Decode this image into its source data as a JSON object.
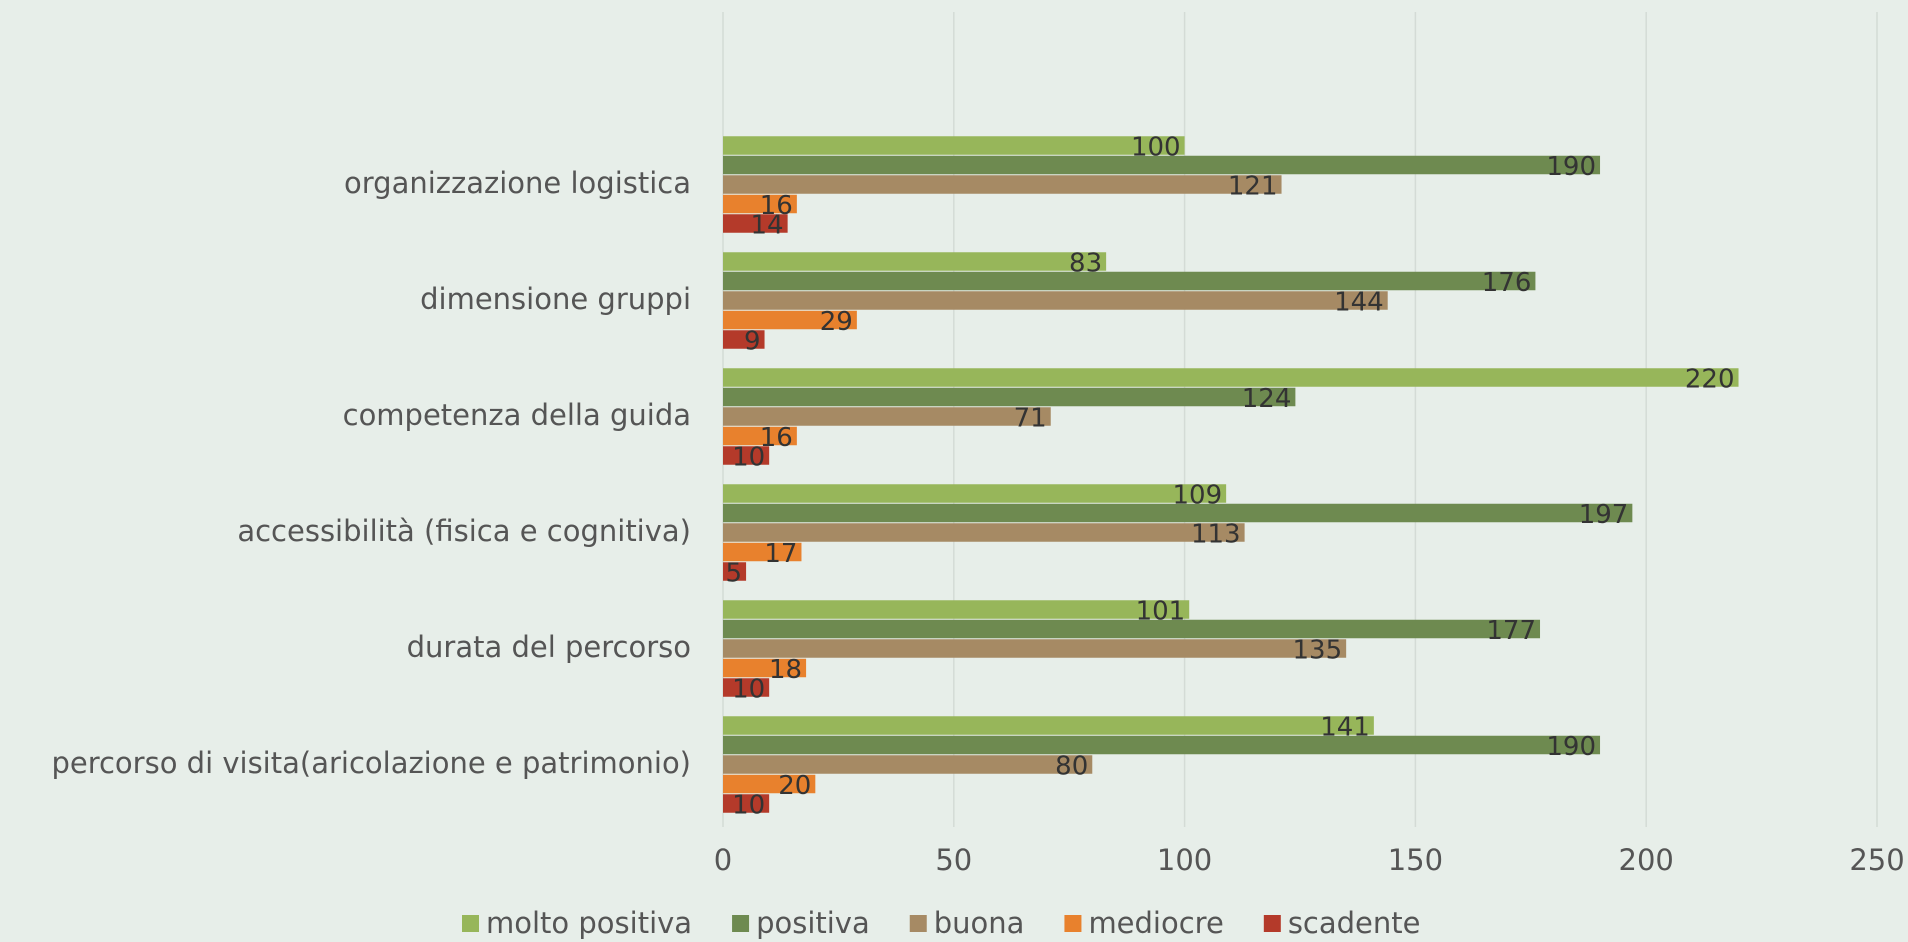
{
  "chart_data": {
    "type": "barh",
    "categories": [
      "organizzazione logistica",
      "dimensione gruppi",
      "competenza della guida",
      "accessibilità (fisica e cognitiva)",
      "durata del percorso",
      "percorso di visita(aricolazione e patrimonio)"
    ],
    "series": [
      {
        "name": "molto positiva",
        "color": "#97b65a",
        "values": [
          100,
          83,
          220,
          109,
          101,
          141
        ]
      },
      {
        "name": "positiva",
        "color": "#6e8a50",
        "values": [
          190,
          176,
          124,
          197,
          177,
          190
        ]
      },
      {
        "name": "buona",
        "color": "#a68a64",
        "values": [
          121,
          144,
          71,
          113,
          135,
          80
        ]
      },
      {
        "name": "mediocre",
        "color": "#e8812d",
        "values": [
          16,
          29,
          16,
          17,
          18,
          20
        ]
      },
      {
        "name": "scadente",
        "color": "#b43a2a",
        "values": [
          14,
          9,
          10,
          5,
          10,
          10
        ]
      }
    ],
    "xlim": [
      0,
      250
    ],
    "xticks": [
      0,
      50,
      100,
      150,
      200,
      250
    ],
    "grid": true,
    "legend": "bottom"
  }
}
